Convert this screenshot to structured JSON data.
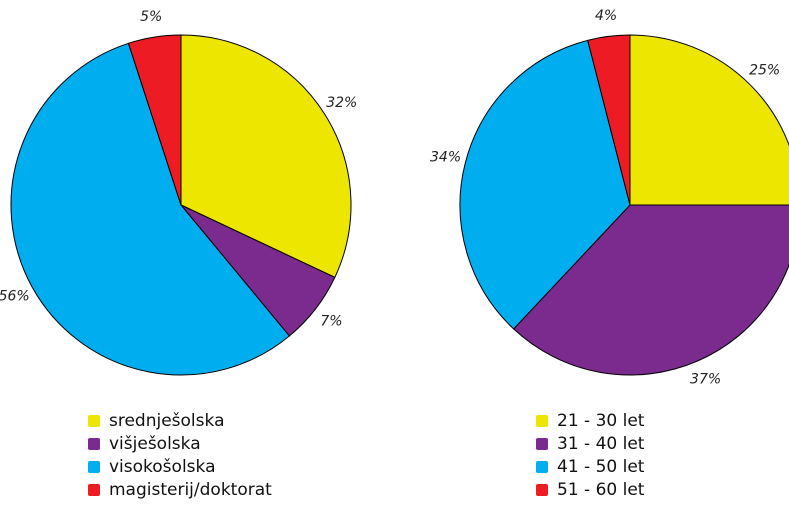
{
  "chart_data": [
    {
      "type": "pie",
      "categories": [
        "srednješolska",
        "višješolska",
        "visokošolska",
        "magisterij/doktorat"
      ],
      "values": [
        32,
        7,
        56,
        5
      ],
      "value_labels": [
        "32%",
        "7%",
        "56%",
        "5%"
      ],
      "colors": [
        "#ece600",
        "#7b2a8e",
        "#00aeef",
        "#ed1c24"
      ]
    },
    {
      "type": "pie",
      "categories": [
        "21 - 30 let",
        "31 - 40 let",
        "41 - 50 let",
        "51 - 60 let"
      ],
      "values": [
        25,
        37,
        34,
        4
      ],
      "value_labels": [
        "25%",
        "37%",
        "34%",
        "4%"
      ],
      "colors": [
        "#ece600",
        "#7b2a8e",
        "#00aeef",
        "#ed1c24"
      ]
    }
  ]
}
